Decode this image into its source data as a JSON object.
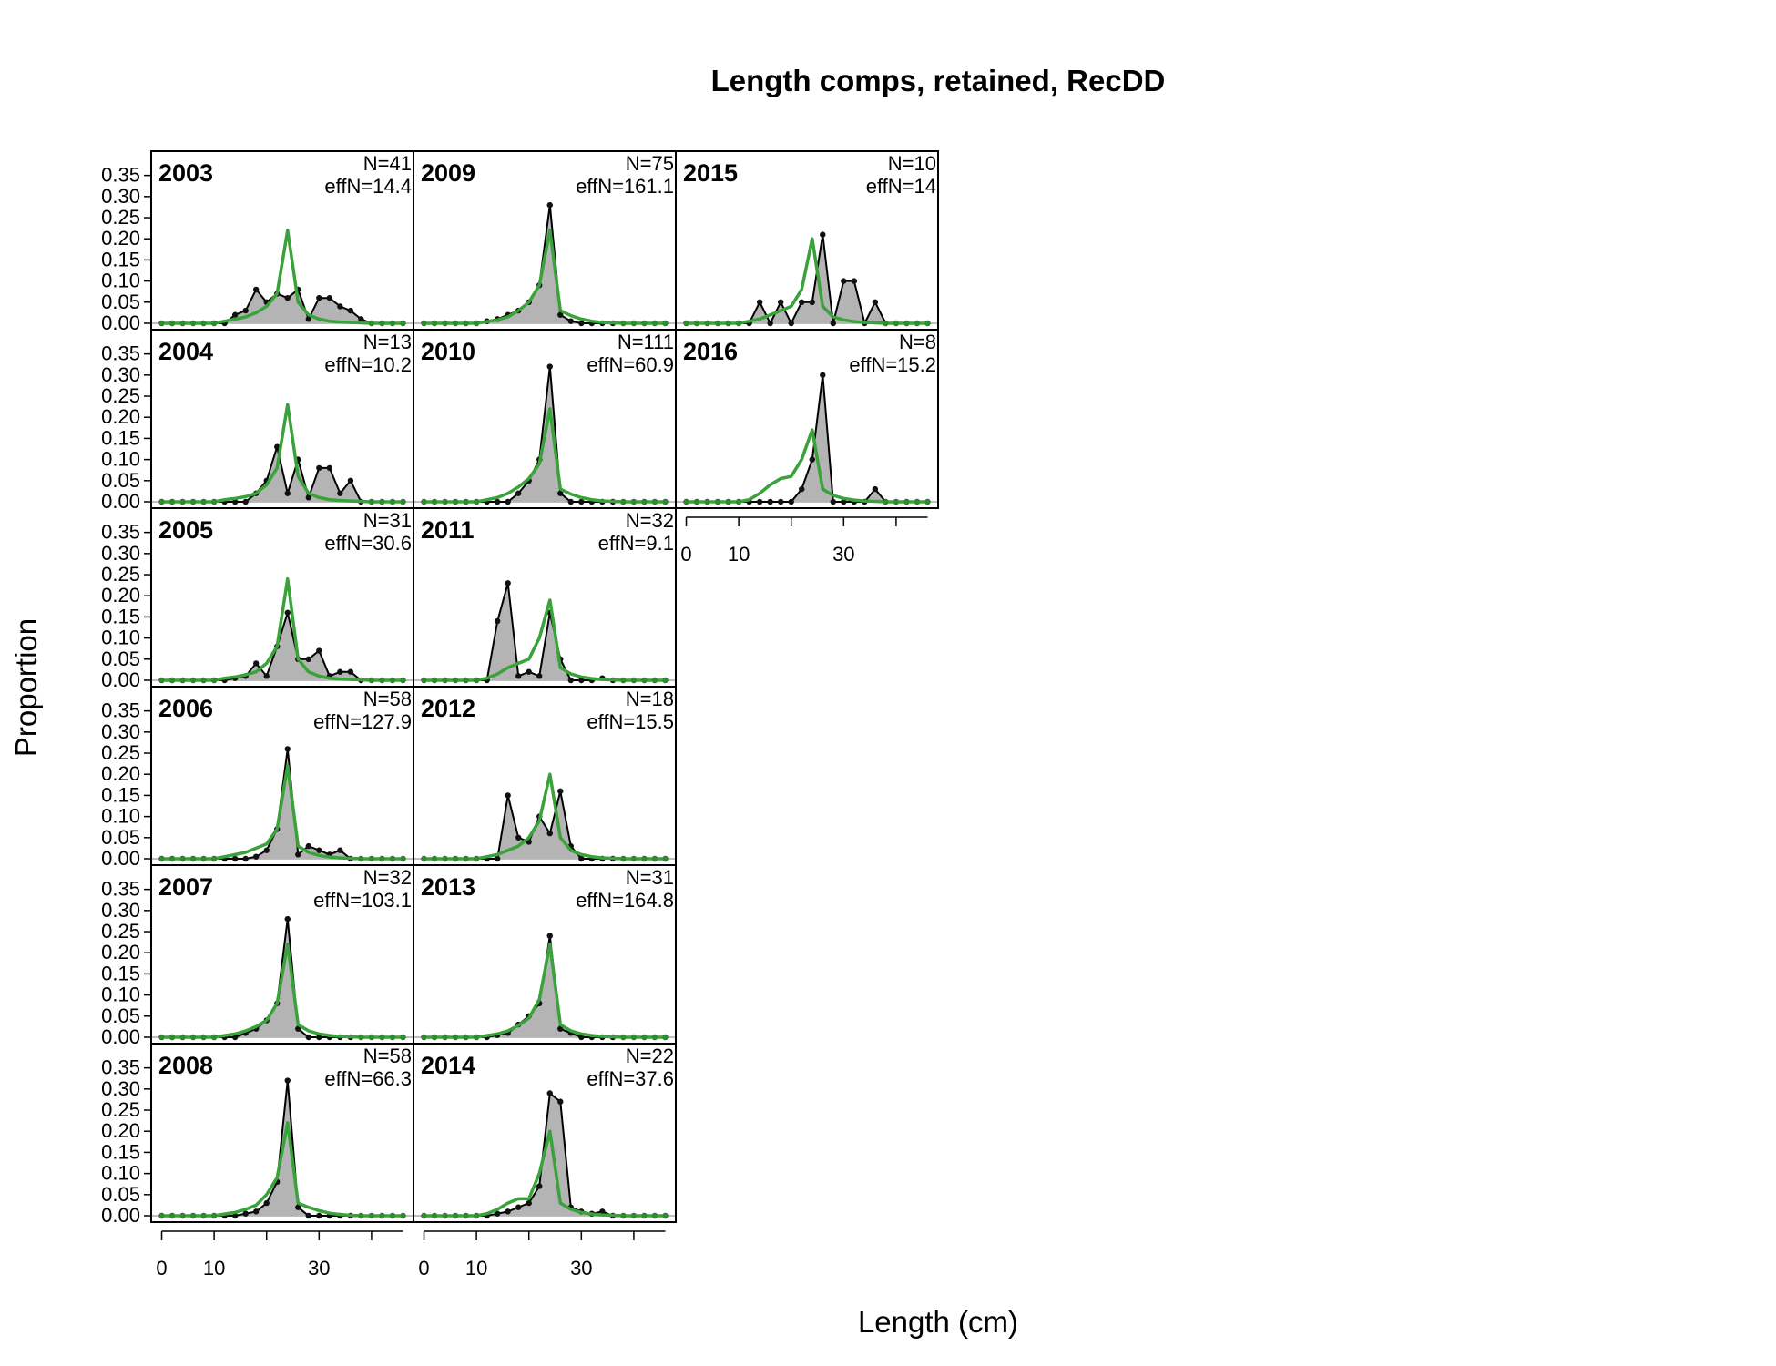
{
  "chart_data": {
    "type": "line",
    "title": "Length comps, retained, RecDD",
    "xlabel": "Length (cm)",
    "ylabel": "Proportion",
    "xlim": [
      -2,
      48
    ],
    "ylim": [
      0,
      0.36
    ],
    "x_ticks": [
      0,
      10,
      30
    ],
    "y_ticks": [
      "0.00",
      "0.05",
      "0.10",
      "0.15",
      "0.20",
      "0.25",
      "0.30",
      "0.35"
    ],
    "bins": [
      0,
      2,
      4,
      6,
      8,
      10,
      12,
      14,
      16,
      18,
      20,
      22,
      24,
      26,
      28,
      30,
      32,
      34,
      36,
      38,
      40,
      42,
      44,
      46
    ],
    "legend": "none",
    "series_styles": {
      "observed": {
        "fill": "#b4b4b4",
        "line": "#000000"
      },
      "expected": {
        "line": "#3aa23a"
      }
    },
    "panels": [
      {
        "year": "2003",
        "n_label": "N=41",
        "effn_label": "effN=14.4",
        "col": 0,
        "row": 0,
        "observed": [
          0,
          0,
          0,
          0,
          0,
          0,
          0,
          0.02,
          0.03,
          0.08,
          0.05,
          0.07,
          0.06,
          0.08,
          0.01,
          0.06,
          0.06,
          0.04,
          0.03,
          0.01,
          0,
          0,
          0,
          0
        ],
        "expected": [
          0,
          0,
          0,
          0,
          0,
          0,
          0.005,
          0.01,
          0.015,
          0.025,
          0.04,
          0.07,
          0.22,
          0.05,
          0.02,
          0.01,
          0.005,
          0.003,
          0.002,
          0.001,
          0,
          0,
          0,
          0
        ]
      },
      {
        "year": "2004",
        "n_label": "N=13",
        "effn_label": "effN=10.2",
        "col": 0,
        "row": 1,
        "observed": [
          0,
          0,
          0,
          0,
          0,
          0,
          0,
          0,
          0,
          0.02,
          0.05,
          0.13,
          0.02,
          0.1,
          0.01,
          0.08,
          0.08,
          0.02,
          0.05,
          0,
          0,
          0,
          0,
          0
        ],
        "expected": [
          0,
          0,
          0,
          0,
          0,
          0,
          0.005,
          0.008,
          0.012,
          0.02,
          0.04,
          0.08,
          0.23,
          0.06,
          0.02,
          0.01,
          0.005,
          0.003,
          0.002,
          0.001,
          0,
          0,
          0,
          0
        ]
      },
      {
        "year": "2005",
        "n_label": "N=31",
        "effn_label": "effN=30.6",
        "col": 0,
        "row": 2,
        "observed": [
          0,
          0,
          0,
          0,
          0,
          0,
          0,
          0.005,
          0.01,
          0.04,
          0.01,
          0.08,
          0.16,
          0.05,
          0.05,
          0.07,
          0.01,
          0.02,
          0.02,
          0,
          0,
          0,
          0,
          0
        ],
        "expected": [
          0,
          0,
          0,
          0,
          0,
          0,
          0.005,
          0.008,
          0.013,
          0.02,
          0.04,
          0.08,
          0.24,
          0.05,
          0.02,
          0.01,
          0.005,
          0.003,
          0.002,
          0.001,
          0,
          0,
          0,
          0
        ]
      },
      {
        "year": "2006",
        "n_label": "N=58",
        "effn_label": "effN=127.9",
        "col": 0,
        "row": 3,
        "observed": [
          0,
          0,
          0,
          0,
          0,
          0,
          0,
          0,
          0,
          0.005,
          0.02,
          0.07,
          0.26,
          0.01,
          0.03,
          0.02,
          0.01,
          0.02,
          0,
          0,
          0,
          0,
          0,
          0
        ],
        "expected": [
          0,
          0,
          0,
          0,
          0,
          0,
          0.005,
          0.01,
          0.015,
          0.025,
          0.035,
          0.07,
          0.22,
          0.03,
          0.015,
          0.008,
          0.004,
          0.002,
          0.001,
          0,
          0,
          0,
          0,
          0
        ]
      },
      {
        "year": "2007",
        "n_label": "N=32",
        "effn_label": "effN=103.1",
        "col": 0,
        "row": 4,
        "observed": [
          0,
          0,
          0,
          0,
          0,
          0,
          0,
          0,
          0.01,
          0.02,
          0.04,
          0.08,
          0.28,
          0.02,
          0,
          0,
          0,
          0,
          0,
          0,
          0,
          0,
          0,
          0
        ],
        "expected": [
          0,
          0,
          0,
          0,
          0,
          0,
          0.004,
          0.008,
          0.015,
          0.025,
          0.04,
          0.08,
          0.22,
          0.03,
          0.015,
          0.008,
          0.004,
          0.002,
          0.001,
          0,
          0,
          0,
          0,
          0
        ]
      },
      {
        "year": "2008",
        "n_label": "N=58",
        "effn_label": "effN=66.3",
        "col": 0,
        "row": 5,
        "observed": [
          0,
          0,
          0,
          0,
          0,
          0,
          0,
          0,
          0.005,
          0.01,
          0.03,
          0.08,
          0.32,
          0.02,
          0,
          0,
          0,
          0,
          0,
          0,
          0,
          0,
          0,
          0
        ],
        "expected": [
          0,
          0,
          0,
          0,
          0,
          0,
          0.004,
          0.008,
          0.015,
          0.025,
          0.05,
          0.09,
          0.22,
          0.03,
          0.02,
          0.012,
          0.006,
          0.003,
          0.001,
          0,
          0,
          0,
          0,
          0
        ]
      },
      {
        "year": "2009",
        "n_label": "N=75",
        "effn_label": "effN=161.1",
        "col": 1,
        "row": 0,
        "observed": [
          0,
          0,
          0,
          0,
          0,
          0,
          0.005,
          0.01,
          0.02,
          0.03,
          0.05,
          0.09,
          0.28,
          0.02,
          0.005,
          0,
          0,
          0,
          0,
          0,
          0,
          0,
          0,
          0
        ],
        "expected": [
          0,
          0,
          0,
          0,
          0,
          0,
          0.004,
          0.008,
          0.015,
          0.03,
          0.05,
          0.09,
          0.22,
          0.03,
          0.018,
          0.01,
          0.005,
          0.002,
          0.001,
          0,
          0,
          0,
          0,
          0
        ]
      },
      {
        "year": "2010",
        "n_label": "N=111",
        "effn_label": "effN=60.9",
        "col": 1,
        "row": 1,
        "observed": [
          0,
          0,
          0,
          0,
          0,
          0,
          0,
          0,
          0,
          0.02,
          0.05,
          0.1,
          0.32,
          0.02,
          0,
          0,
          0,
          0,
          0,
          0,
          0,
          0,
          0,
          0
        ],
        "expected": [
          0,
          0,
          0,
          0,
          0,
          0,
          0.005,
          0.01,
          0.02,
          0.035,
          0.055,
          0.09,
          0.22,
          0.03,
          0.018,
          0.01,
          0.005,
          0.002,
          0.001,
          0,
          0,
          0,
          0,
          0
        ]
      },
      {
        "year": "2011",
        "n_label": "N=32",
        "effn_label": "effN=9.1",
        "col": 1,
        "row": 2,
        "observed": [
          0,
          0,
          0,
          0,
          0,
          0,
          0,
          0.14,
          0.23,
          0.01,
          0.02,
          0.01,
          0.16,
          0.05,
          0,
          0,
          0,
          0.005,
          0,
          0,
          0,
          0,
          0,
          0
        ],
        "expected": [
          0,
          0,
          0,
          0,
          0,
          0,
          0.005,
          0.015,
          0.03,
          0.04,
          0.05,
          0.1,
          0.19,
          0.03,
          0.015,
          0.008,
          0.004,
          0.002,
          0.001,
          0,
          0,
          0,
          0,
          0
        ]
      },
      {
        "year": "2012",
        "n_label": "N=18",
        "effn_label": "effN=15.5",
        "col": 1,
        "row": 3,
        "observed": [
          0,
          0,
          0,
          0,
          0,
          0,
          0,
          0,
          0.15,
          0.05,
          0.04,
          0.1,
          0.06,
          0.16,
          0.03,
          0,
          0,
          0,
          0,
          0,
          0,
          0,
          0,
          0
        ],
        "expected": [
          0,
          0,
          0,
          0,
          0,
          0,
          0.005,
          0.01,
          0.02,
          0.03,
          0.05,
          0.09,
          0.2,
          0.05,
          0.02,
          0.01,
          0.005,
          0.002,
          0.001,
          0,
          0,
          0,
          0,
          0
        ]
      },
      {
        "year": "2013",
        "n_label": "N=31",
        "effn_label": "effN=164.8",
        "col": 1,
        "row": 4,
        "observed": [
          0,
          0,
          0,
          0,
          0,
          0,
          0,
          0.005,
          0.01,
          0.03,
          0.05,
          0.08,
          0.24,
          0.02,
          0.01,
          0,
          0,
          0,
          0,
          0,
          0,
          0,
          0,
          0
        ],
        "expected": [
          0,
          0,
          0,
          0,
          0,
          0,
          0.004,
          0.008,
          0.015,
          0.028,
          0.045,
          0.09,
          0.22,
          0.03,
          0.015,
          0.008,
          0.004,
          0.002,
          0.001,
          0,
          0,
          0,
          0,
          0
        ]
      },
      {
        "year": "2014",
        "n_label": "N=22",
        "effn_label": "effN=37.6",
        "col": 1,
        "row": 5,
        "observed": [
          0,
          0,
          0,
          0,
          0,
          0,
          0,
          0.005,
          0.01,
          0.02,
          0.03,
          0.07,
          0.29,
          0.27,
          0.02,
          0.01,
          0.005,
          0.01,
          0,
          0,
          0,
          0,
          0,
          0
        ],
        "expected": [
          0,
          0,
          0,
          0,
          0,
          0,
          0.005,
          0.015,
          0.03,
          0.04,
          0.04,
          0.1,
          0.2,
          0.03,
          0.015,
          0.008,
          0.004,
          0.002,
          0.001,
          0,
          0,
          0,
          0,
          0
        ]
      },
      {
        "year": "2015",
        "n_label": "N=10",
        "effn_label": "effN=14",
        "col": 2,
        "row": 0,
        "observed": [
          0,
          0,
          0,
          0,
          0,
          0,
          0,
          0.05,
          0,
          0.05,
          0,
          0.05,
          0.05,
          0.21,
          0,
          0.1,
          0.1,
          0,
          0.05,
          0,
          0,
          0,
          0,
          0
        ],
        "expected": [
          0,
          0,
          0,
          0,
          0,
          0,
          0.005,
          0.01,
          0.02,
          0.03,
          0.04,
          0.08,
          0.2,
          0.04,
          0.015,
          0.008,
          0.004,
          0.002,
          0.001,
          0,
          0,
          0,
          0,
          0
        ]
      },
      {
        "year": "2016",
        "n_label": "N=8",
        "effn_label": "effN=15.2",
        "col": 2,
        "row": 1,
        "observed": [
          0,
          0,
          0,
          0,
          0,
          0,
          0,
          0,
          0,
          0,
          0,
          0.03,
          0.1,
          0.3,
          0,
          0,
          0,
          0,
          0.03,
          0,
          0,
          0,
          0,
          0
        ],
        "expected": [
          0,
          0,
          0,
          0,
          0,
          0,
          0.005,
          0.02,
          0.04,
          0.055,
          0.06,
          0.1,
          0.17,
          0.03,
          0.015,
          0.008,
          0.004,
          0.002,
          0.001,
          0,
          0,
          0,
          0,
          0
        ]
      }
    ]
  }
}
